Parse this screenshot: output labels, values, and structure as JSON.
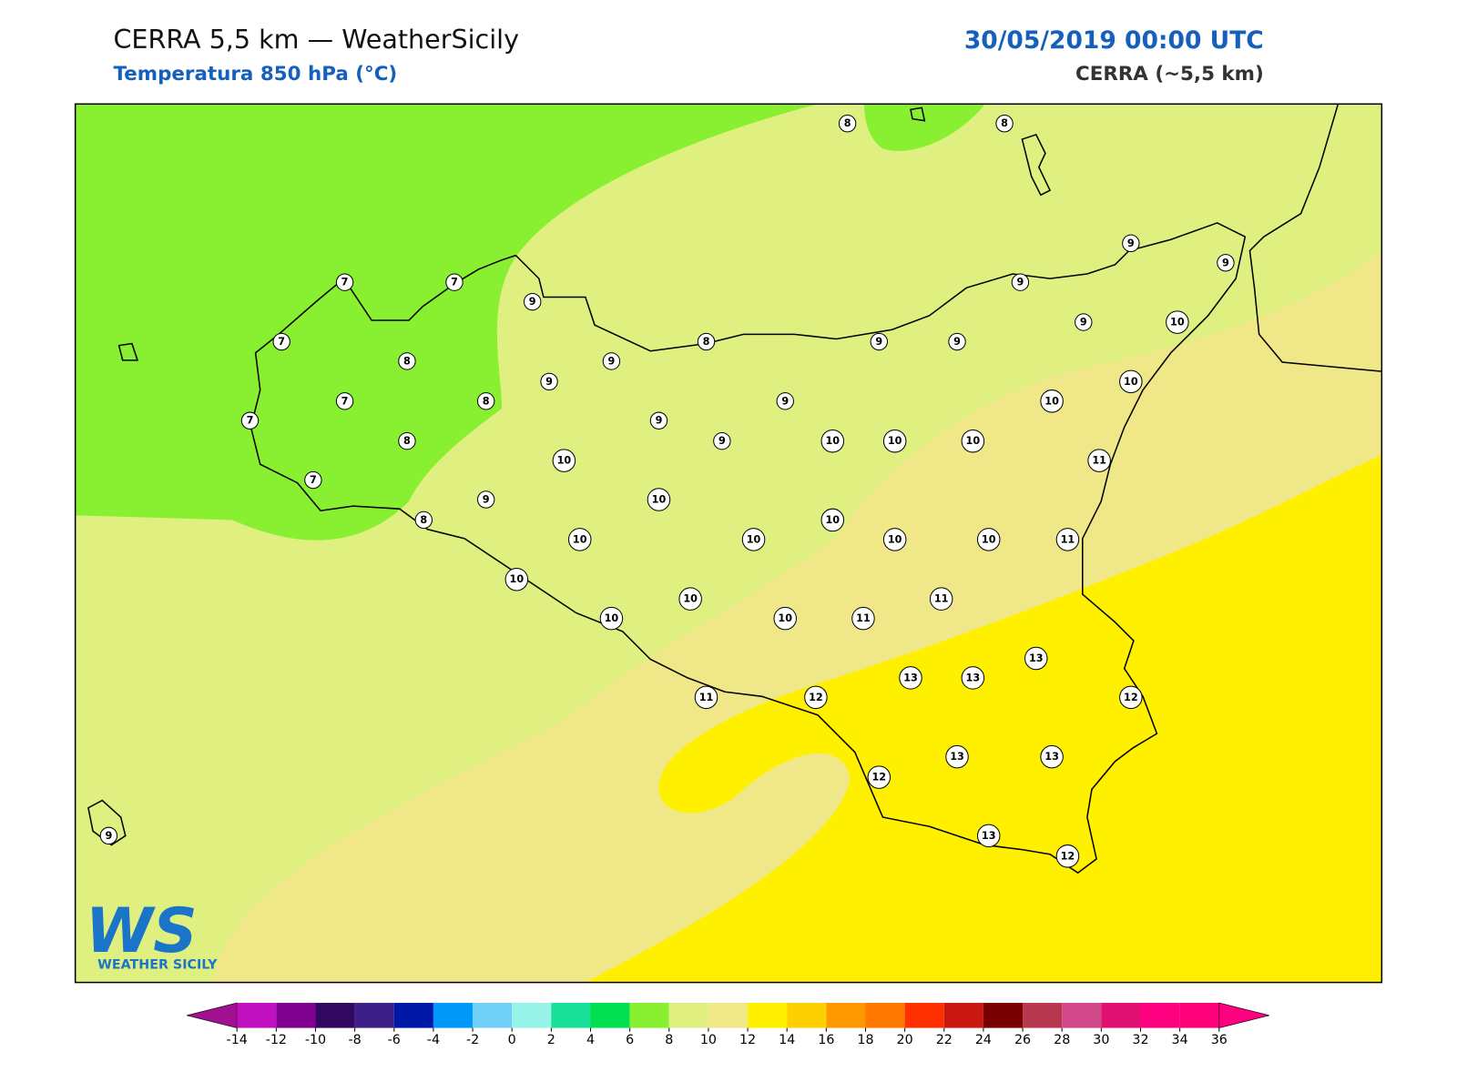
{
  "header": {
    "title": "CERRA 5,5 km — WeatherSicily",
    "subtitle": "Temperatura 850 hPa (°C)",
    "datetime": "30/05/2019 00:00 UTC",
    "source": "CERRA (~5,5 km)"
  },
  "map": {
    "station_values": [
      8,
      8,
      7,
      7,
      9,
      9,
      9,
      9,
      7,
      8,
      8,
      9,
      9,
      9,
      10,
      9,
      9,
      7,
      8,
      9,
      10,
      10,
      7,
      9,
      8,
      9,
      10,
      10,
      10,
      10,
      11,
      7,
      9,
      10,
      8,
      10,
      10,
      10,
      10,
      10,
      11,
      10,
      10,
      11,
      10,
      10,
      11,
      13,
      13,
      13,
      11,
      12,
      12,
      12,
      13,
      13,
      13,
      12,
      9
    ]
  },
  "logo": {
    "mark": "WS",
    "name": "WEATHER SICILY"
  },
  "colorbar": {
    "levels": [
      -14,
      -12,
      -10,
      -8,
      -6,
      -4,
      -2,
      0,
      2,
      4,
      6,
      8,
      10,
      12,
      14,
      16,
      18,
      20,
      22,
      24,
      26,
      28,
      30,
      32,
      34,
      36
    ],
    "colors": [
      "#a01090",
      "#c010c0",
      "#800090",
      "#300860",
      "#3c2088",
      "#0018a8",
      "#0098f8",
      "#70d0f8",
      "#98f4e8",
      "#18e098",
      "#00e050",
      "#88f030",
      "#e0f080",
      "#f0e888",
      "#fff000",
      "#ffd000",
      "#ff9800",
      "#ff7800",
      "#ff3000",
      "#c81810",
      "#780000",
      "#b83850",
      "#d04888",
      "#e01070",
      "#ff0080",
      "#ff0078",
      "#ff0080"
    ]
  }
}
